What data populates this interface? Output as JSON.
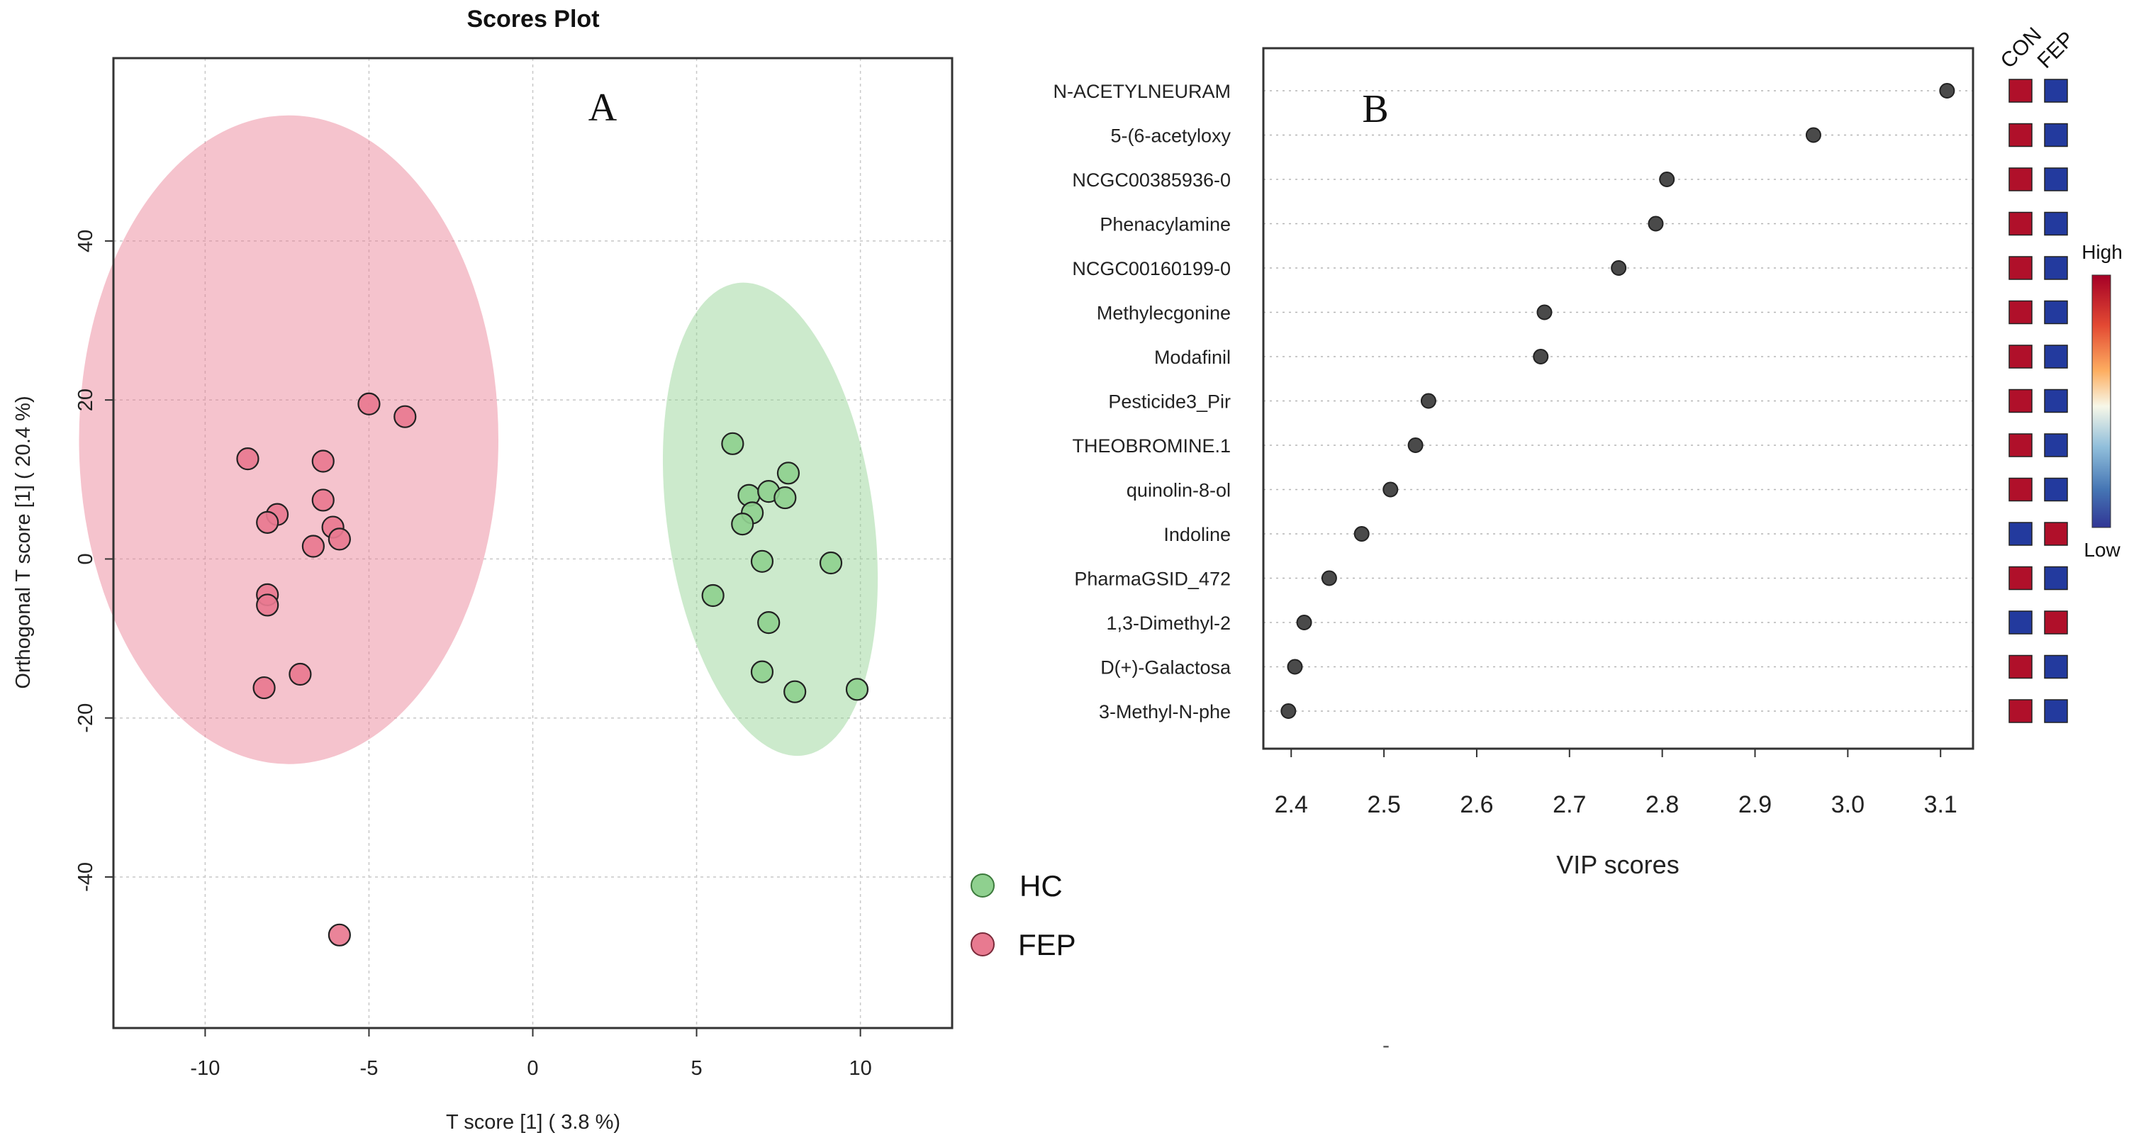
{
  "panel_a": {
    "panel_label": "A",
    "legend": [
      {
        "label": "HC",
        "color": "#8fd08f"
      },
      {
        "label": "FEP",
        "color": "#e87a90"
      }
    ]
  },
  "panel_b": {
    "panel_label": "B",
    "heatmap_headers": [
      "CON",
      "FEP"
    ],
    "scale_high": "High",
    "scale_low": "Low",
    "colors": {
      "high": "#b0102a",
      "low": "#233a9e"
    },
    "stray_mark": "-"
  },
  "chart_data": [
    {
      "type": "scatter",
      "title": "Scores Plot",
      "xlabel": "T score [1]  ( 3.8 %)",
      "ylabel": "Orthogonal T score [1]  ( 20.4 %)",
      "xlim": [
        -12.8,
        12.8
      ],
      "ylim": [
        -59,
        63
      ],
      "xticks": [
        -10,
        -5,
        0,
        5,
        10
      ],
      "yticks": [
        -40,
        -20,
        0,
        20,
        40
      ],
      "grid": true,
      "legend_position": "right",
      "series": [
        {
          "name": "HC",
          "color": "#8fd08f",
          "ellipse": {
            "cx": 7.25,
            "cy": 5,
            "rx": 3.15,
            "ry": 30,
            "rotate_deg": -8
          },
          "points": [
            [
              6.1,
              14.5
            ],
            [
              7.8,
              10.8
            ],
            [
              6.6,
              8
            ],
            [
              7.2,
              8.5
            ],
            [
              7.7,
              7.7
            ],
            [
              6.7,
              5.8
            ],
            [
              6.4,
              4.4
            ],
            [
              7.0,
              -0.3
            ],
            [
              9.1,
              -0.5
            ],
            [
              5.5,
              -4.6
            ],
            [
              7.2,
              -8
            ],
            [
              7.0,
              -14.2
            ],
            [
              8.0,
              -16.7
            ],
            [
              9.9,
              -16.4
            ]
          ]
        },
        {
          "name": "FEP",
          "color": "#e87a90",
          "ellipse": {
            "cx": -7.45,
            "cy": 15,
            "rx": 6.4,
            "ry": 40.8,
            "rotate_deg": 0
          },
          "points": [
            [
              -5.0,
              19.5
            ],
            [
              -3.9,
              17.9
            ],
            [
              -8.7,
              12.6
            ],
            [
              -6.4,
              12.3
            ],
            [
              -6.4,
              7.4
            ],
            [
              -7.8,
              5.6
            ],
            [
              -8.1,
              4.6
            ],
            [
              -6.1,
              4
            ],
            [
              -5.9,
              2.5
            ],
            [
              -6.7,
              1.6
            ],
            [
              -8.1,
              -4.5
            ],
            [
              -8.1,
              -5.8
            ],
            [
              -7.1,
              -14.5
            ],
            [
              -8.2,
              -16.2
            ],
            [
              -5.9,
              -47.3
            ]
          ]
        }
      ]
    },
    {
      "type": "scatter",
      "title": "",
      "xlabel": "VIP scores",
      "ylabel": "",
      "xlim": [
        2.37,
        3.135
      ],
      "xticks": [
        "2.4",
        "2.5",
        "2.6",
        "2.7",
        "2.8",
        "2.9",
        "3.0",
        "3.1"
      ],
      "grid": "horizontal-dotted",
      "categories": [
        "N-ACETYLNEURAM",
        "5-(6-acetyloxy",
        "NCGC00385936-0",
        "Phenacylamine",
        "NCGC00160199-0",
        "Methylecgonine",
        "Modafinil",
        "Pesticide3_Pir",
        "THEOBROMINE.1",
        "quinolin-8-ol",
        "Indoline",
        "PharmaGSID_472",
        "1,3-Dimethyl-2",
        "D(+)-Galactosa",
        "3-Methyl-N-phe"
      ],
      "values": [
        3.107,
        2.963,
        2.805,
        2.793,
        2.753,
        2.673,
        2.669,
        2.548,
        2.534,
        2.507,
        2.476,
        2.441,
        2.414,
        2.404,
        2.397
      ],
      "heatmap": {
        "columns": [
          "CON",
          "FEP"
        ],
        "cells": [
          [
            "High",
            "Low"
          ],
          [
            "High",
            "Low"
          ],
          [
            "High",
            "Low"
          ],
          [
            "High",
            "Low"
          ],
          [
            "High",
            "Low"
          ],
          [
            "High",
            "Low"
          ],
          [
            "High",
            "Low"
          ],
          [
            "High",
            "Low"
          ],
          [
            "High",
            "Low"
          ],
          [
            "High",
            "Low"
          ],
          [
            "Low",
            "High"
          ],
          [
            "High",
            "Low"
          ],
          [
            "Low",
            "High"
          ],
          [
            "High",
            "Low"
          ],
          [
            "High",
            "Low"
          ]
        ]
      }
    }
  ]
}
